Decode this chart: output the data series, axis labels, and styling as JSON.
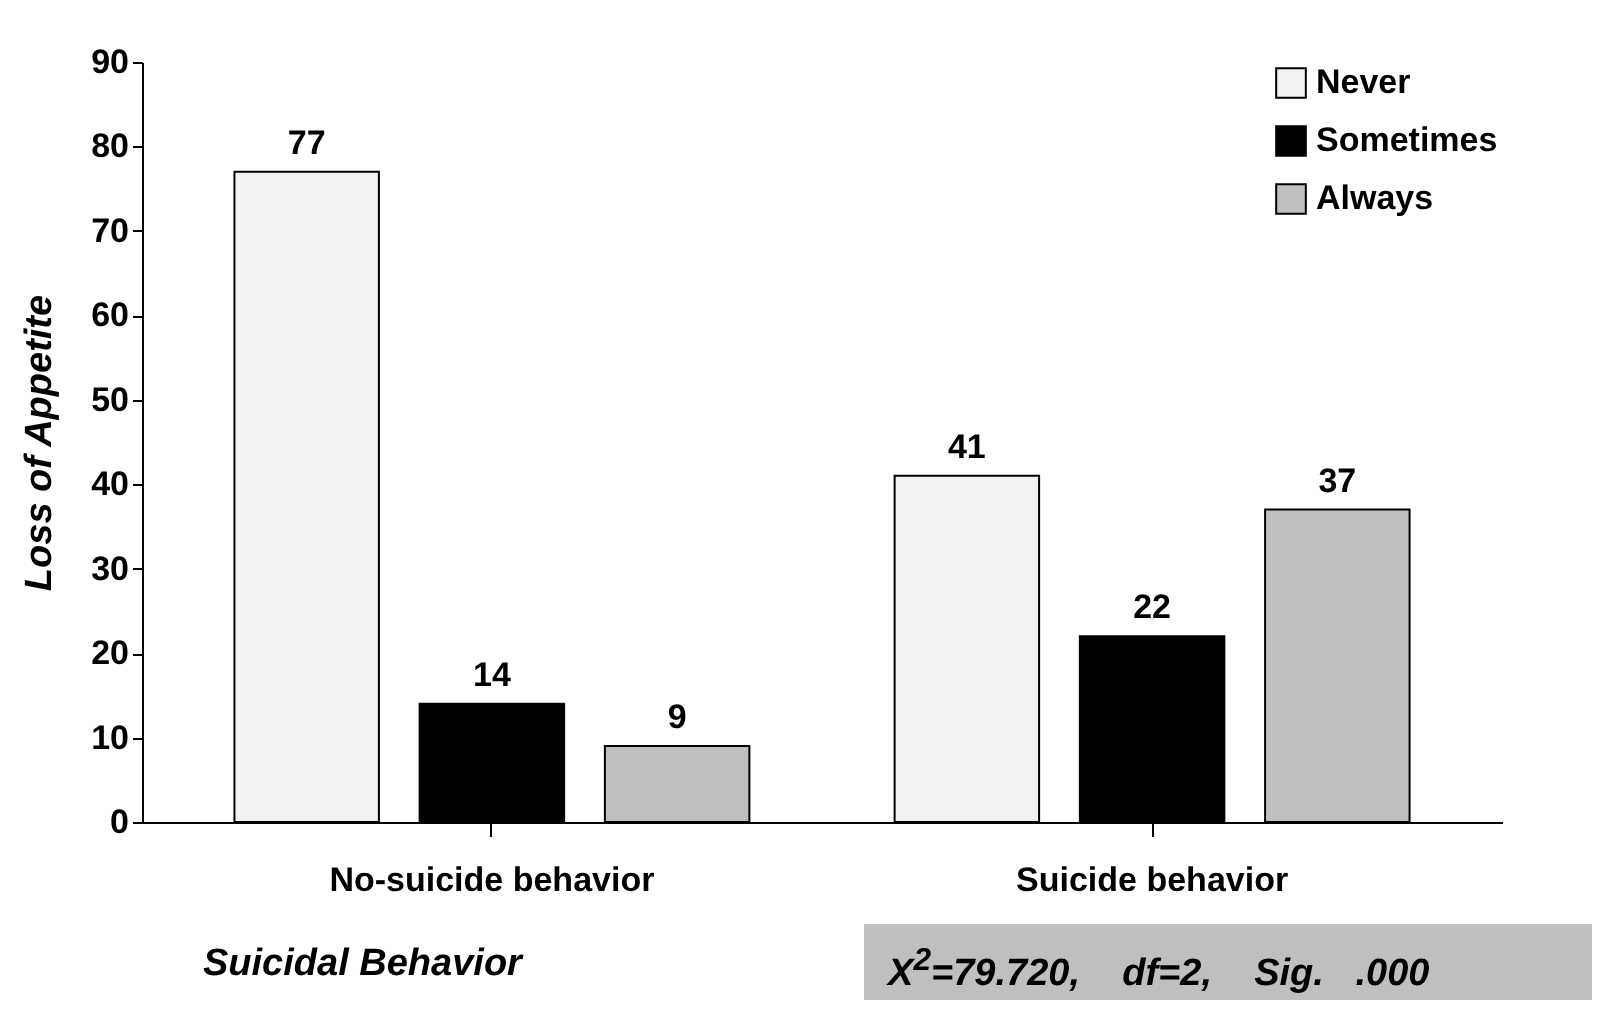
{
  "chart_data": {
    "type": "bar",
    "xlabel": "Suicidal Behavior",
    "ylabel": "Loss of Appetite",
    "categories": [
      "No-suicide behavior",
      "Suicide behavior"
    ],
    "series": [
      {
        "name": "Never",
        "color": "#f2f2f2",
        "values": [
          77,
          41
        ]
      },
      {
        "name": "Sometimes",
        "color": "#000000",
        "values": [
          14,
          22
        ]
      },
      {
        "name": "Always",
        "color": "#bfbfbf",
        "values": [
          9,
          37
        ]
      }
    ],
    "ylim": [
      0,
      90
    ],
    "yticks": [
      0,
      10,
      20,
      30,
      40,
      50,
      60,
      70,
      80,
      90
    ],
    "grid": false,
    "legend": "top right",
    "data_labels": true,
    "annotations": [
      "X$^{2}$=79.720,    df=2,    Sig.   .000"
    ]
  }
}
